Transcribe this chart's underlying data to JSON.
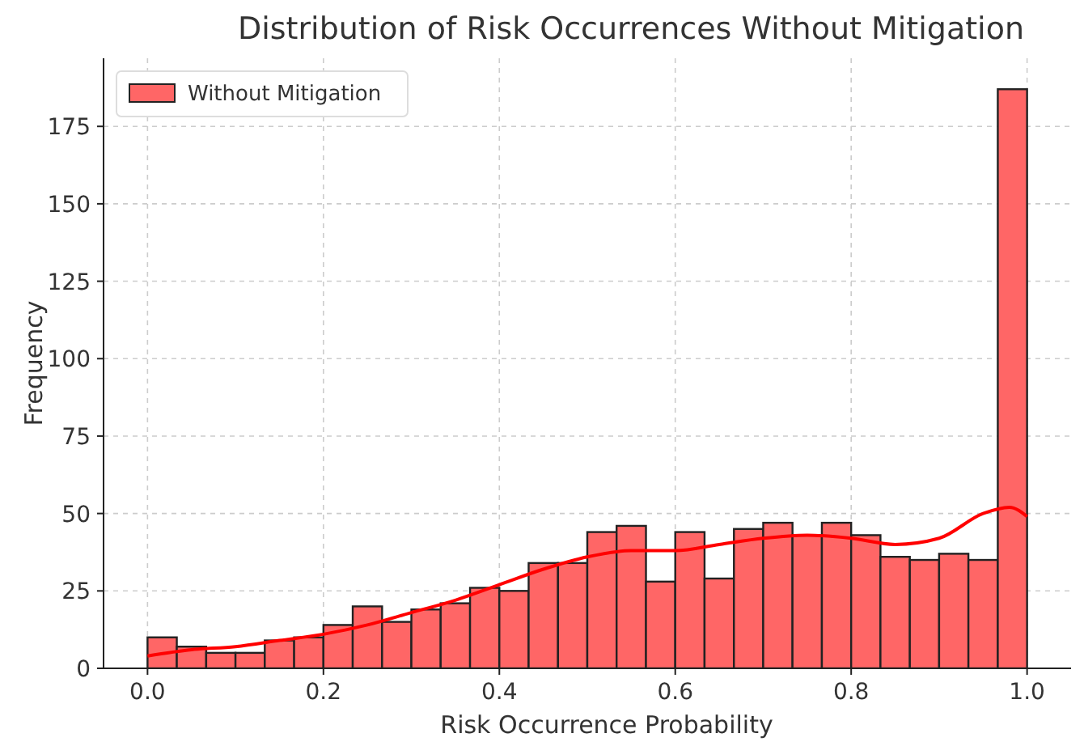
{
  "chart_data": {
    "type": "histogram",
    "title": "Distribution of Risk Occurrences Without Mitigation",
    "xlabel": "Risk Occurrence Probability",
    "ylabel": "Frequency",
    "bins": [
      0,
      0.0333,
      0.0667,
      0.1,
      0.1333,
      0.1667,
      0.2,
      0.2333,
      0.2667,
      0.3,
      0.3333,
      0.3667,
      0.4,
      0.4333,
      0.4667,
      0.5,
      0.5333,
      0.5667,
      0.6,
      0.6333,
      0.6667,
      0.7,
      0.7333,
      0.7667,
      0.8,
      0.8333,
      0.8667,
      0.9,
      0.9333,
      0.9667,
      1
    ],
    "series": [
      {
        "name": "Without Mitigation",
        "color": "#ff6666",
        "values": [
          10,
          7,
          5,
          5,
          9,
          10,
          14,
          20,
          15,
          19,
          21,
          26,
          25,
          34,
          34,
          44,
          46,
          28,
          44,
          29,
          45,
          47,
          43,
          47,
          43,
          36,
          35,
          37,
          35,
          187
        ]
      },
      {
        "type": "line",
        "color": "#ff0000",
        "x": [
          0,
          0.05,
          0.1,
          0.15,
          0.2,
          0.25,
          0.3,
          0.35,
          0.4,
          0.45,
          0.5,
          0.55,
          0.6,
          0.65,
          0.7,
          0.75,
          0.8,
          0.85,
          0.9,
          0.95,
          0.98,
          1
        ],
        "values": [
          4,
          6,
          7,
          9,
          11,
          14,
          18,
          22,
          27,
          32,
          36,
          38,
          38,
          40,
          42,
          43,
          42,
          40,
          42,
          50,
          52,
          49
        ]
      }
    ],
    "xlim": [
      -0.05,
      1.05
    ],
    "xticks": [
      {
        "value": 0,
        "label": "0.0"
      },
      0.2,
      0.4,
      0.6,
      0.8,
      {
        "value": 1,
        "label": "1.0"
      }
    ],
    "ylim": [
      0,
      197
    ],
    "yticks": [
      0,
      25,
      50,
      75,
      100,
      125,
      150,
      175
    ],
    "grid": true,
    "legend": "top left"
  }
}
